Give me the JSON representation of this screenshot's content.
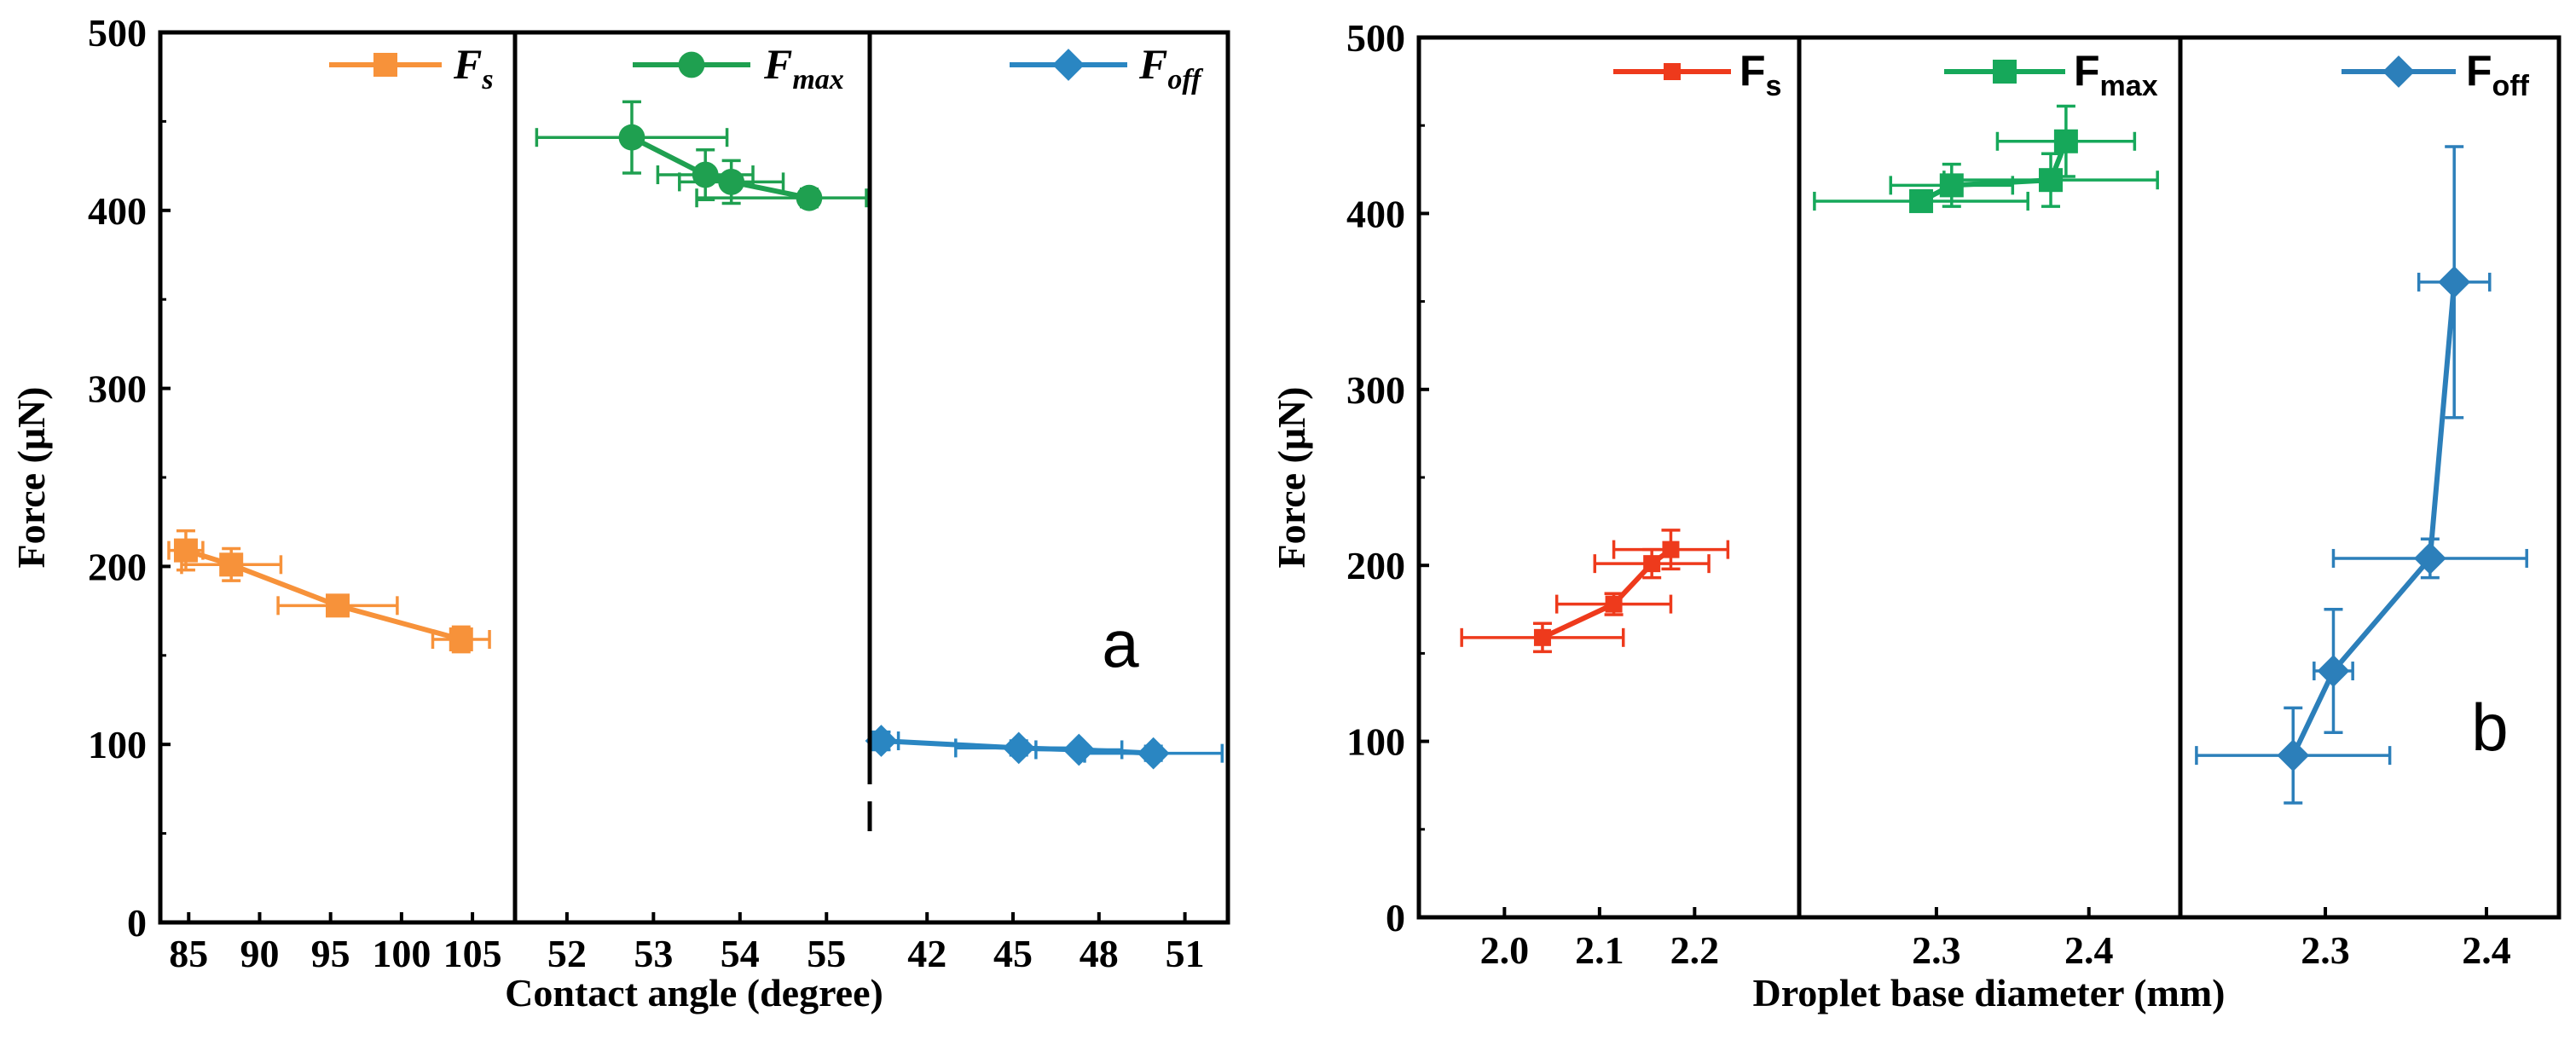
{
  "colors": {
    "fs_a": "#f7923a",
    "fmax_a": "#1fa050",
    "foff_a": "#2a86c2",
    "fs_b": "#ee3a1c",
    "fmax_b": "#16a85a",
    "foff_b": "#2c7fba",
    "axis": "#000000"
  },
  "chart_data": [
    {
      "id": "a",
      "type": "scatter",
      "panel_label": "a",
      "ylabel": "Force (μN)",
      "xlabel": "Contact angle (degree)",
      "ylim": [
        0,
        500
      ],
      "yticks": [
        0,
        100,
        200,
        300,
        400,
        500
      ],
      "segments": [
        {
          "series": "F_s",
          "legend_main": "F",
          "legend_sub": "s",
          "legend_style": "italic",
          "marker": "square",
          "color_key": "fs_a",
          "xlim": [
            83,
            108
          ],
          "xticks": [
            85,
            90,
            95,
            100,
            105
          ],
          "points": [
            {
              "x": 84.8,
              "y": 209,
              "xerr": 1.2,
              "yerr": 11
            },
            {
              "x": 88.0,
              "y": 201,
              "xerr": 3.5,
              "yerr": 9
            },
            {
              "x": 95.5,
              "y": 178,
              "xerr": 4.2,
              "yerr": 5
            },
            {
              "x": 104.2,
              "y": 159,
              "xerr": 2.0,
              "yerr": 7
            }
          ]
        },
        {
          "series": "F_max",
          "legend_main": "F",
          "legend_sub": "max",
          "legend_style": "italic",
          "marker": "circle",
          "color_key": "fmax_a",
          "xlim": [
            51.4,
            55.5
          ],
          "xticks": [
            52,
            53,
            54,
            55
          ],
          "points": [
            {
              "x": 52.75,
              "y": 441,
              "xerr": 1.1,
              "yerr": 20
            },
            {
              "x": 53.6,
              "y": 420,
              "xerr": 0.55,
              "yerr": 14
            },
            {
              "x": 53.9,
              "y": 416,
              "xerr": 0.6,
              "yerr": 12
            },
            {
              "x": 54.8,
              "y": 407,
              "xerr": 1.3,
              "yerr": 5
            }
          ]
        },
        {
          "series": "F_off",
          "legend_main": "F",
          "legend_sub": "off",
          "legend_style": "italic",
          "marker": "diamond",
          "color_key": "foff_a",
          "xlim": [
            40,
            52.5
          ],
          "xticks": [
            42,
            45,
            48,
            51
          ],
          "points": [
            {
              "x": 40.4,
              "y": 102,
              "xerr": 0.6,
              "yerr": 5
            },
            {
              "x": 45.2,
              "y": 98,
              "xerr": 2.2,
              "yerr": 4
            },
            {
              "x": 47.3,
              "y": 97,
              "xerr": 1.5,
              "yerr": 3
            },
            {
              "x": 49.9,
              "y": 95,
              "xerr": 2.4,
              "yerr": 4
            }
          ]
        }
      ]
    },
    {
      "id": "b",
      "type": "scatter",
      "panel_label": "b",
      "ylabel": "Force (μN)",
      "xlabel": "Droplet base diameter (mm)",
      "ylim": [
        0,
        500
      ],
      "yticks": [
        0,
        100,
        200,
        300,
        400,
        500
      ],
      "segments": [
        {
          "series": "F_s",
          "legend_main": "F",
          "legend_sub": "s",
          "legend_style": "upright",
          "marker": "square",
          "color_key": "fs_b",
          "xlim": [
            1.91,
            2.31
          ],
          "xticks": [
            2.0,
            2.1,
            2.2
          ],
          "points": [
            {
              "x": 2.04,
              "y": 159,
              "xerr": 0.085,
              "yerr": 8
            },
            {
              "x": 2.115,
              "y": 178,
              "xerr": 0.06,
              "yerr": 6
            },
            {
              "x": 2.155,
              "y": 201,
              "xerr": 0.06,
              "yerr": 8
            },
            {
              "x": 2.175,
              "y": 209,
              "xerr": 0.06,
              "yerr": 11
            }
          ]
        },
        {
          "series": "F_max",
          "legend_main": "F",
          "legend_sub": "max",
          "legend_style": "upright",
          "marker": "square",
          "color_key": "fmax_b",
          "xlim": [
            2.21,
            2.46
          ],
          "xticks": [
            2.3,
            2.4
          ],
          "points": [
            {
              "x": 2.29,
              "y": 407,
              "xerr": 0.07,
              "yerr": 5
            },
            {
              "x": 2.31,
              "y": 416,
              "xerr": 0.04,
              "yerr": 12
            },
            {
              "x": 2.375,
              "y": 419,
              "xerr": 0.07,
              "yerr": 15
            },
            {
              "x": 2.385,
              "y": 441,
              "xerr": 0.045,
              "yerr": 20
            }
          ]
        },
        {
          "series": "F_off",
          "legend_main": "F",
          "legend_sub": "off",
          "legend_style": "upright",
          "marker": "diamond",
          "color_key": "foff_b",
          "xlim": [
            2.21,
            2.445
          ],
          "xticks": [
            2.3,
            2.4
          ],
          "points": [
            {
              "x": 2.28,
              "y": 92,
              "xerr": 0.06,
              "yerr": 27
            },
            {
              "x": 2.305,
              "y": 140,
              "xerr": 0.012,
              "yerr": 35
            },
            {
              "x": 2.365,
              "y": 204,
              "xerr": 0.06,
              "yerr": 11
            },
            {
              "x": 2.38,
              "y": 361,
              "xerr": 0.022,
              "yerr": 77
            }
          ]
        }
      ]
    }
  ]
}
